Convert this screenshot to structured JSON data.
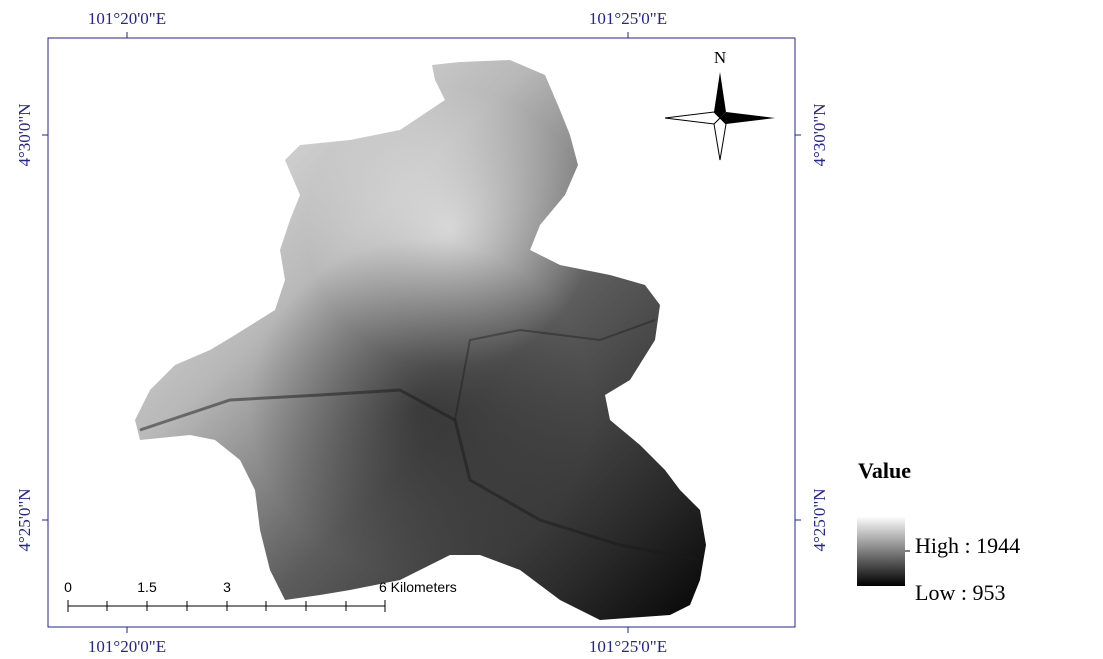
{
  "map": {
    "graticule": {
      "top": [
        "101°20'0\"E",
        "101°25'0\"E"
      ],
      "bottom": [
        "101°20'0\"E",
        "101°25'0\"E"
      ],
      "left": [
        "4°30'0\"N",
        "4°25'0\"N"
      ],
      "right": [
        "4°30'0\"N",
        "4°25'0\"N"
      ]
    },
    "north_arrow": {
      "label": "N"
    },
    "scale_bar": {
      "labels": [
        "0",
        "1.5",
        "3",
        "6 Kilometers"
      ]
    },
    "legend": {
      "title": "Value",
      "high": "High : 1944",
      "low": "Low : 953"
    }
  }
}
